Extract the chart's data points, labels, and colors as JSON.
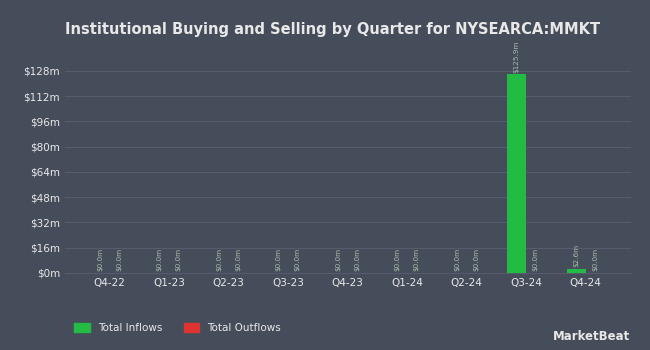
{
  "title": "Institutional Buying and Selling by Quarter for NYSEARCA:MMKT",
  "categories": [
    "Q4-22",
    "Q1-23",
    "Q2-23",
    "Q3-23",
    "Q4-23",
    "Q1-24",
    "Q2-24",
    "Q3-24",
    "Q4-24"
  ],
  "inflows": [
    0,
    0,
    0,
    0,
    0,
    0,
    0,
    125.9,
    2.6
  ],
  "outflows": [
    0,
    0,
    0,
    0,
    0,
    0,
    0,
    0,
    0
  ],
  "inflow_color": "#22bb44",
  "outflow_color": "#dd3333",
  "background_color": "#464d5a",
  "plot_bg_color": "#464d5a",
  "grid_color": "#5a6070",
  "text_color": "#e8e8e8",
  "annotation_color": "#aabbaa",
  "ylim_max": 144,
  "yticks": [
    0,
    16,
    32,
    48,
    64,
    80,
    96,
    112,
    128
  ],
  "bar_width": 0.32,
  "legend_labels": [
    "Total Inflows",
    "Total Outflows"
  ],
  "watermark": "⼟MarketBeat"
}
